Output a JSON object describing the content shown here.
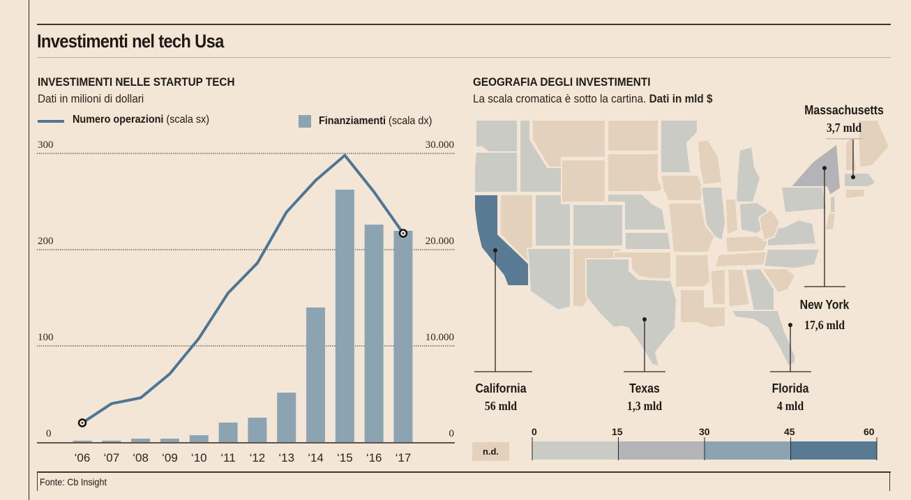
{
  "title": "Investimenti nel tech Usa",
  "source": "Fonte: Cb Insight",
  "colors": {
    "background": "#f4e6d6",
    "line": "#4f7594",
    "bar": "#8ca3b1",
    "state_gray": "#cbcbc6",
    "state_beige": "#e3d1bb",
    "scale_0_15": "#cbcbc6",
    "scale_15_30": "#b4b4b8",
    "scale_30_45": "#8ca3b1",
    "scale_45_60": "#587a93"
  },
  "left_panel": {
    "heading": "INVESTIMENTI NELLE STARTUP TECH",
    "subtitle": "Dati in milioni di dollari",
    "legend_line_bold": "Numero operazioni",
    "legend_line_rest": " (scala sx)",
    "legend_bar_bold": "Finanziamenti",
    "legend_bar_rest": " (scala dx)"
  },
  "right_panel": {
    "heading": "GEOGRAFIA DEGLI INVESTIMENTI",
    "subtitle_plain": "La scala cromatica è sotto la cartina. ",
    "subtitle_bold": "Dati in mld $",
    "callouts": [
      {
        "state": "California",
        "value": "56 mld"
      },
      {
        "state": "Texas",
        "value": "1,3 mld"
      },
      {
        "state": "Florida",
        "value": "4 mld"
      },
      {
        "state": "New York",
        "value": "17,6 mld"
      },
      {
        "state": "Massachusetts",
        "value": "3,7 mld"
      }
    ],
    "scale": {
      "nd_label": "n.d.",
      "ticks": [
        "0",
        "15",
        "30",
        "45",
        "60"
      ]
    }
  },
  "chart_data": [
    {
      "type": "bar+line",
      "title": "INVESTIMENTI NELLE STARTUP TECH",
      "subtitle": "Dati in milioni di dollari",
      "categories": [
        "‘06",
        "‘07",
        "‘08",
        "‘09",
        "‘10",
        "‘11",
        "‘12",
        "‘13",
        "‘14",
        "‘15",
        "‘16",
        "‘17"
      ],
      "series": [
        {
          "name": "Numero operazioni (scala sx)",
          "type": "line",
          "axis": "left",
          "values": [
            20,
            40,
            46,
            71,
            108,
            155,
            186,
            239,
            272,
            298,
            260,
            217
          ]
        },
        {
          "name": "Finanziamenti (scala dx)",
          "type": "bar",
          "axis": "right",
          "values": [
            150,
            150,
            360,
            360,
            720,
            2030,
            2540,
            5140,
            13990,
            26230,
            22600,
            21960
          ]
        }
      ],
      "left_axis": {
        "ticks": [
          "0",
          "100",
          "200",
          "300"
        ],
        "range": [
          0,
          300
        ]
      },
      "right_axis": {
        "ticks": [
          "0",
          "10.000",
          "20.000",
          "30.000"
        ],
        "range": [
          0,
          30000
        ]
      },
      "grid": true,
      "legend": "top"
    },
    {
      "type": "choropleth",
      "title": "GEOGRAFIA DEGLI INVESTIMENTI",
      "unit": "mld $",
      "values": {
        "California": 56,
        "New York": 17.6,
        "Florida": 4,
        "Massachusetts": 3.7,
        "Texas": 1.3
      },
      "color_scale_breaks": [
        0,
        15,
        30,
        45,
        60
      ]
    }
  ]
}
